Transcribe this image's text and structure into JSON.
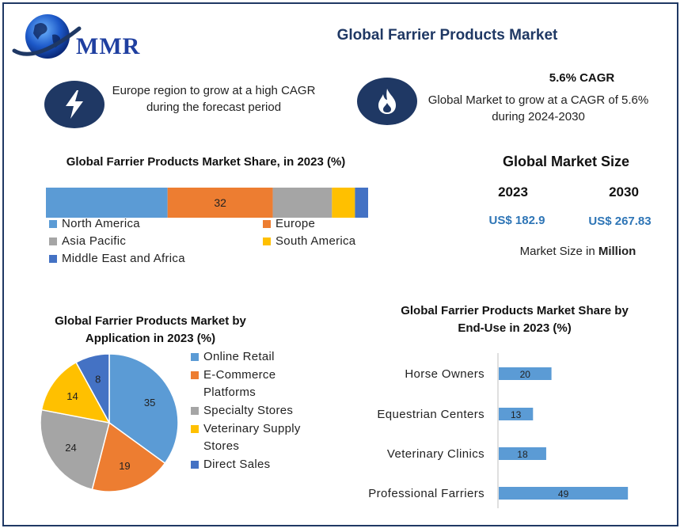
{
  "title": "Global Farrier Products Market",
  "logo": {
    "text": "MMR",
    "icon": "globe-logo-icon"
  },
  "highlights": [
    {
      "icon": "lightning-bolt-icon",
      "text": "Europe region to grow at a high CAGR during the forecast period"
    },
    {
      "icon": "flame-icon",
      "heading": "5.6% CAGR",
      "text": "Global Market to grow at a CAGR of 5.6% during 2024-2030"
    }
  ],
  "market_size": {
    "title": "Global Market Size",
    "years": [
      "2023",
      "2030"
    ],
    "values": [
      "US$ 182.9",
      "US$ 267.83"
    ],
    "unit_prefix": "Market Size in ",
    "unit_bold": "Million"
  },
  "colors": {
    "north_america": "#5b9bd5",
    "europe": "#ed7d31",
    "asia_pacific": "#a5a5a5",
    "south_america": "#ffc000",
    "mea": "#4472c4",
    "navy": "#1f3864",
    "accent_text": "#2e75b6"
  },
  "chart_data": [
    {
      "type": "bar",
      "orientation": "horizontal-stacked",
      "title": "Global Farrier Products Market Share, in 2023 (%)",
      "categories": [
        "North America",
        "Europe",
        "Asia Pacific",
        "South America",
        "Middle East and Africa"
      ],
      "values": [
        37,
        32,
        18,
        7,
        4
      ],
      "data_labels": [
        "",
        "32",
        "",
        "",
        ""
      ],
      "colors": [
        "#5b9bd5",
        "#ed7d31",
        "#a5a5a5",
        "#ffc000",
        "#4472c4"
      ],
      "legend_position": "bottom"
    },
    {
      "type": "pie",
      "title": "Global Farrier Products Market by Application in 2023 (%)",
      "categories": [
        "Online Retail",
        "E-Commerce Platforms",
        "Specialty Stores",
        "Veterinary Supply Stores",
        "Direct Sales"
      ],
      "values": [
        35,
        19,
        24,
        14,
        8
      ],
      "colors": [
        "#5b9bd5",
        "#ed7d31",
        "#a5a5a5",
        "#ffc000",
        "#4472c4"
      ],
      "legend_position": "right"
    },
    {
      "type": "bar",
      "orientation": "horizontal",
      "title": "Global Farrier Products Market Share by End-Use in 2023 (%)",
      "categories": [
        "Horse Owners",
        "Equestrian Centers",
        "Veterinary Clinics",
        "Professional Farriers"
      ],
      "values": [
        20,
        13,
        18,
        49
      ],
      "color": "#5b9bd5"
    }
  ]
}
